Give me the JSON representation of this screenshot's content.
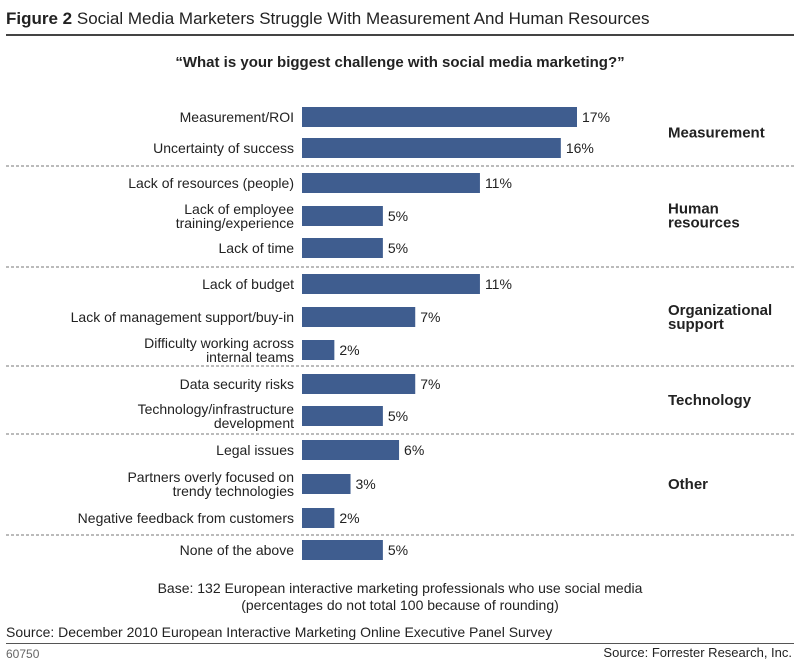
{
  "figure": {
    "label": "Figure 2",
    "title": "Social Media Marketers Struggle With Measurement And Human Resources"
  },
  "chart_data": {
    "type": "bar",
    "orientation": "horizontal",
    "title": "“What is your biggest challenge with social media marketing?”",
    "value_suffix": "%",
    "xlim": [
      0,
      17
    ],
    "grid": false,
    "bar_color": "#3f5d8f",
    "categories": [
      [
        "Measurement/ROI"
      ],
      [
        "Uncertainty of success"
      ],
      [
        "Lack of resources (people)"
      ],
      [
        "Lack of employee",
        "training/experience"
      ],
      [
        "Lack of time"
      ],
      [
        "Lack of budget"
      ],
      [
        "Lack of management support/buy-in"
      ],
      [
        "Difficulty working across",
        "internal teams"
      ],
      [
        "Data security risks"
      ],
      [
        "Technology/infrastructure",
        "development"
      ],
      [
        "Legal issues"
      ],
      [
        "Partners overly focused on",
        "trendy technologies"
      ],
      [
        "Negative feedback from customers"
      ],
      [
        "None of the above"
      ]
    ],
    "values": [
      17,
      16,
      11,
      5,
      5,
      11,
      7,
      2,
      7,
      5,
      6,
      3,
      2,
      5
    ],
    "groups": [
      {
        "label": [
          "Measurement"
        ],
        "count": 2
      },
      {
        "label": [
          "Human",
          "resources"
        ],
        "count": 3
      },
      {
        "label": [
          "Organizational",
          "support"
        ],
        "count": 3
      },
      {
        "label": [
          "Technology"
        ],
        "count": 2
      },
      {
        "label": [
          "Other"
        ],
        "count": 3
      },
      {
        "label": [],
        "count": 1
      }
    ]
  },
  "notes": {
    "base_line1": "Base: 132 European interactive marketing professionals who use social media",
    "base_line2": "(percentages do not total 100 because of rounding)",
    "source": "Source: December 2010 European Interactive Marketing Online Executive Panel Survey"
  },
  "footer": {
    "id": "60750",
    "source": "Source: Forrester Research, Inc."
  }
}
